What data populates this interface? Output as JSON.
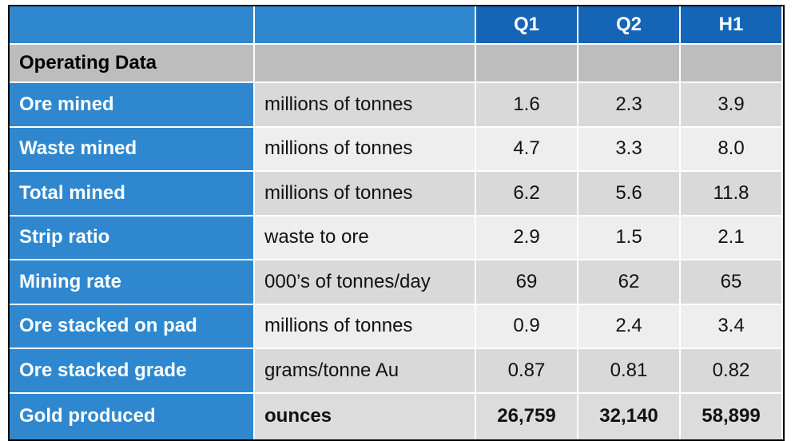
{
  "header": {
    "blank1": "",
    "blank2": "",
    "q1": "Q1",
    "q2": "Q2",
    "h1": "H1"
  },
  "section": {
    "title": "Operating Data"
  },
  "rows": [
    {
      "label": "Ore mined",
      "unit": "millions of tonnes",
      "q1": "1.6",
      "q2": "2.3",
      "h1": "3.9"
    },
    {
      "label": "Waste mined",
      "unit": "millions of tonnes",
      "q1": "4.7",
      "q2": "3.3",
      "h1": "8.0"
    },
    {
      "label": "Total mined",
      "unit": "millions of tonnes",
      "q1": "6.2",
      "q2": "5.6",
      "h1": "11.8"
    },
    {
      "label": "Strip ratio",
      "unit": "waste to ore",
      "q1": "2.9",
      "q2": "1.5",
      "h1": "2.1"
    },
    {
      "label": "Mining rate",
      "unit": "000’s of tonnes/day",
      "q1": "69",
      "q2": "62",
      "h1": "65"
    },
    {
      "label": "Ore stacked on pad",
      "unit": "millions of tonnes",
      "q1": "0.9",
      "q2": "2.4",
      "h1": "3.4"
    },
    {
      "label": "Ore stacked grade",
      "unit": "grams/tonne Au",
      "q1": "0.87",
      "q2": "0.81",
      "h1": "0.82"
    },
    {
      "label": "Gold produced",
      "unit": "ounces",
      "q1": "26,759",
      "q2": "32,140",
      "h1": "58,899"
    }
  ],
  "colors": {
    "header_blue": "#1565b7",
    "label_blue": "#2f88cf",
    "section_grey": "#bdbdbd",
    "row_grey": "#d9d9d9",
    "row_light": "#eeeeee"
  }
}
